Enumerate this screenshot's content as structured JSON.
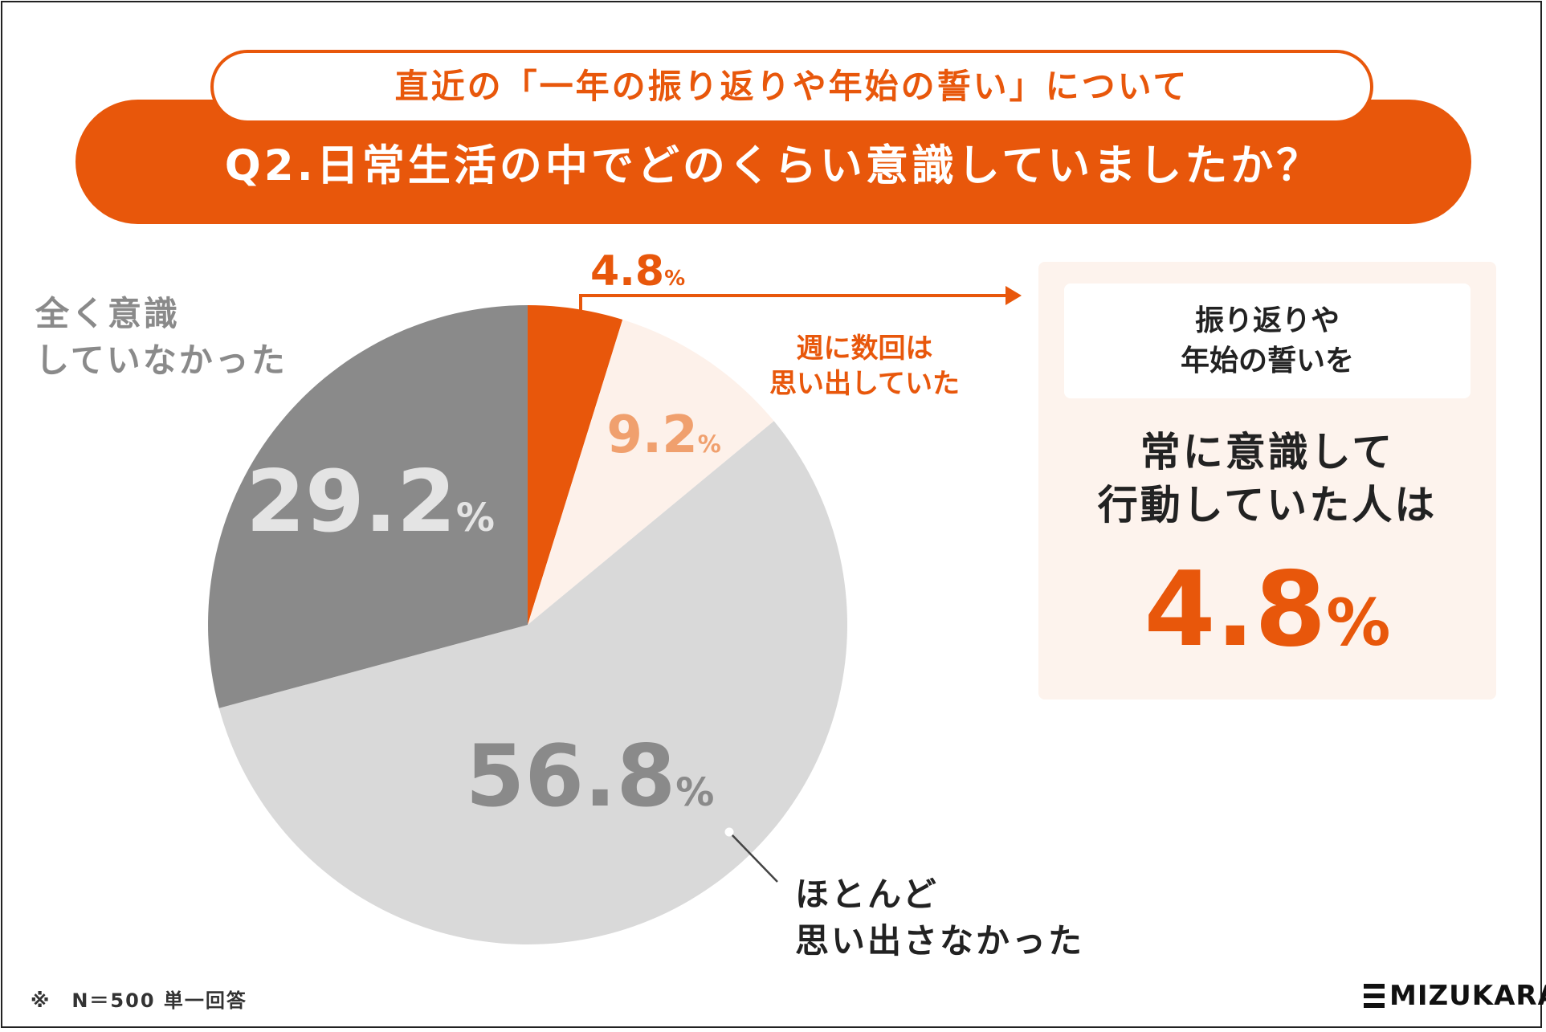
{
  "subtitle": "直近の「一年の振り返りや年始の誓い」について",
  "question": "Q2.日常生活の中でどのくらい意識していましたか？",
  "labels": {
    "always": "4.8%",
    "weekly": [
      "週に数回は",
      "思い出していた"
    ],
    "none": [
      "全く意識",
      "していなかった"
    ],
    "rarely": [
      "ほとんど",
      "思い出さなかった"
    ]
  },
  "panel": {
    "top_text": [
      "振り返りや",
      "年始の誓いを"
    ],
    "main_text": [
      "常に意識して",
      "行動していた人は"
    ],
    "value": "4.8",
    "unit": "%"
  },
  "footnote": "※　N＝500 単一回答",
  "logo": "MIZUKARA",
  "chart_data": {
    "type": "pie",
    "unit": "%",
    "slices": [
      {
        "name": "常に意識して行動していた",
        "value": 4.8,
        "color": "#e8570b",
        "text_color": "#e8570b"
      },
      {
        "name": "週に数回は思い出していた",
        "value": 9.2,
        "color": "#fdf1ea",
        "text_color": "#f0a06e"
      },
      {
        "name": "ほとんど思い出さなかった",
        "value": 56.8,
        "color": "#d9d9d9",
        "text_color": "#8a8a8a"
      },
      {
        "name": "全く意識していなかった",
        "value": 29.2,
        "color": "#8a8a8a",
        "text_color": "#e4e4e4"
      }
    ]
  },
  "colors": {
    "accent": "#e8570b",
    "panel_bg": "#fdf3ed"
  }
}
